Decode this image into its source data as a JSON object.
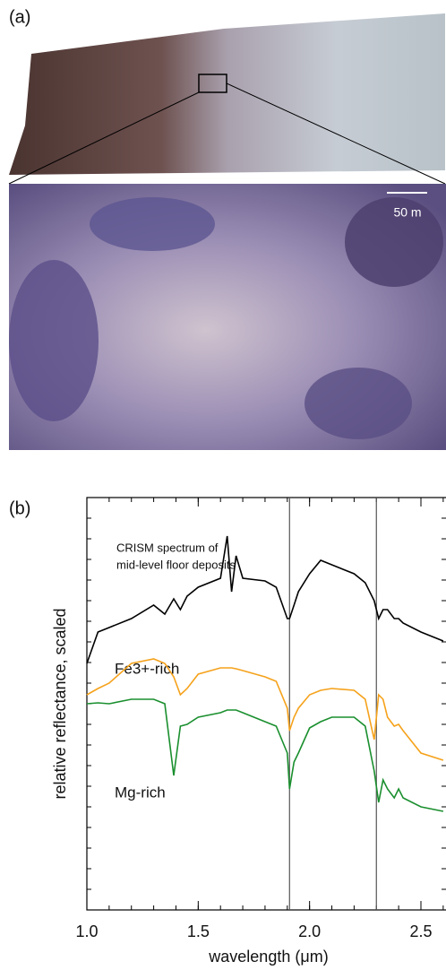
{
  "panel_a": {
    "label": "(a)",
    "scale_bar": "50 m"
  },
  "chart_data": {
    "type": "line",
    "panel_label": "(b)",
    "ylabel": "relative reflectance, scaled",
    "xlabel": "wavelength (μm)",
    "annotations": [
      "CRISM spectrum of",
      "mid-level floor deposits"
    ],
    "x": [
      1.0,
      1.05,
      1.1,
      1.2,
      1.3,
      1.35,
      1.39,
      1.42,
      1.45,
      1.5,
      1.6,
      1.63,
      1.65,
      1.67,
      1.7,
      1.8,
      1.85,
      1.9,
      1.91,
      1.93,
      1.95,
      2.0,
      2.05,
      2.1,
      2.2,
      2.25,
      2.29,
      2.31,
      2.33,
      2.35,
      2.38,
      2.4,
      2.42,
      2.5,
      2.6
    ],
    "series": [
      {
        "color": "#000000",
        "values": [
          27.5,
          31,
          31.5,
          32.5,
          34,
          33,
          34.7,
          33.5,
          35,
          36,
          37,
          41.7,
          35.5,
          39.5,
          37,
          36.7,
          36,
          32.5,
          32.5,
          34,
          35.5,
          37.5,
          39,
          38.5,
          37.5,
          36.5,
          34.5,
          32.5,
          33.5,
          33.5,
          32.5,
          32.5,
          32,
          31,
          30
        ]
      },
      {
        "name": "Fe3+-rich",
        "color": "#f5a21b",
        "values": [
          24,
          24.7,
          25.3,
          27.5,
          28,
          27.5,
          26,
          24,
          24.7,
          26.3,
          27,
          27,
          27,
          26.9,
          26.7,
          26,
          25.5,
          22.5,
          20,
          21.5,
          22.5,
          24,
          24.5,
          24.7,
          24.5,
          23.5,
          19,
          24,
          23.5,
          21.5,
          20.5,
          20.7,
          20,
          17.5,
          16.7
        ]
      },
      {
        "name": "Mg-rich",
        "color": "#1a8f2e",
        "values": [
          23,
          23.1,
          23,
          23.5,
          23.5,
          23,
          15,
          20.5,
          20.7,
          21.5,
          22,
          22.3,
          22.3,
          22.3,
          22,
          21,
          20.5,
          17.5,
          13.5,
          16.5,
          17.5,
          20.3,
          21,
          21.5,
          21.5,
          20.5,
          15.5,
          12,
          14.5,
          13.5,
          12.5,
          13.5,
          12.5,
          11.5,
          11
        ]
      }
    ],
    "vlines": [
      1.91,
      2.3
    ],
    "xlim": [
      1.0,
      2.61
    ],
    "xticks": [
      {
        "value": 1.0,
        "label": "1.0"
      },
      1.5,
      {
        "value": 2.0,
        "label": "2.0"
      },
      2.5
    ],
    "ylim": [
      0,
      46
    ]
  }
}
